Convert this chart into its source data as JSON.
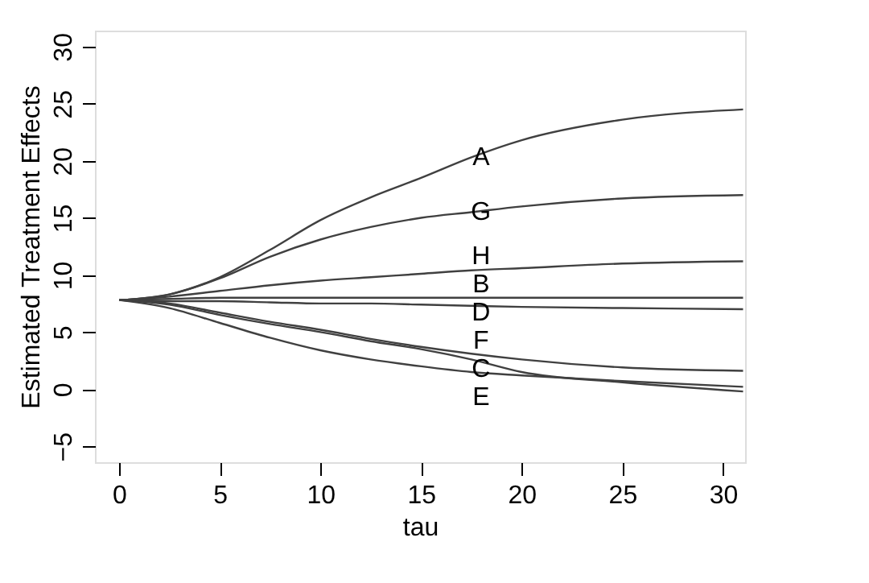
{
  "chart_data": {
    "type": "line",
    "xlabel": "tau",
    "ylabel": "Estimated Treatment Effects",
    "xlim": [
      -1.2,
      31.1
    ],
    "ylim": [
      -6.4,
      31.4
    ],
    "xticks": [
      0,
      5,
      10,
      15,
      20,
      25,
      30
    ],
    "yticks": [
      -5,
      0,
      5,
      10,
      15,
      20,
      25,
      30
    ],
    "grid": false,
    "legend": false,
    "line_style": "solid",
    "marker": "none",
    "x": [
      0,
      2.5,
      5,
      7.5,
      10,
      12.5,
      15,
      17.5,
      20,
      25,
      31
    ],
    "series": [
      {
        "name": "A",
        "color": "#404040",
        "values": [
          7.8,
          8.3,
          9.8,
          12.2,
          14.8,
          16.8,
          18.5,
          20.3,
          21.8,
          23.6,
          24.5
        ]
      },
      {
        "name": "B",
        "color": "#404040",
        "values": [
          7.8,
          7.9,
          8.0,
          8.0,
          8.0,
          8.0,
          8.0,
          8.0,
          8.0,
          8.0,
          8.0
        ]
      },
      {
        "name": "C",
        "color": "#404040",
        "values": [
          7.8,
          7.4,
          6.5,
          5.7,
          5.0,
          4.2,
          3.5,
          2.6,
          1.5,
          0.6,
          -0.2
        ]
      },
      {
        "name": "D",
        "color": "#404040",
        "values": [
          7.8,
          7.7,
          7.7,
          7.6,
          7.5,
          7.5,
          7.4,
          7.3,
          7.2,
          7.1,
          7.0
        ]
      },
      {
        "name": "E",
        "color": "#404040",
        "values": [
          7.8,
          7.1,
          5.8,
          4.5,
          3.4,
          2.6,
          2.0,
          1.5,
          1.2,
          0.7,
          0.2
        ]
      },
      {
        "name": "F",
        "color": "#404040",
        "values": [
          7.8,
          7.5,
          6.7,
          5.9,
          5.2,
          4.4,
          3.7,
          3.1,
          2.6,
          1.9,
          1.6
        ]
      },
      {
        "name": "G",
        "color": "#404040",
        "values": [
          7.8,
          8.3,
          9.7,
          11.6,
          13.1,
          14.2,
          15.0,
          15.5,
          16.0,
          16.7,
          17.0
        ]
      },
      {
        "name": "H",
        "color": "#404040",
        "values": [
          7.8,
          8.1,
          8.6,
          9.1,
          9.5,
          9.8,
          10.1,
          10.4,
          10.6,
          11.0,
          11.2
        ]
      }
    ]
  }
}
